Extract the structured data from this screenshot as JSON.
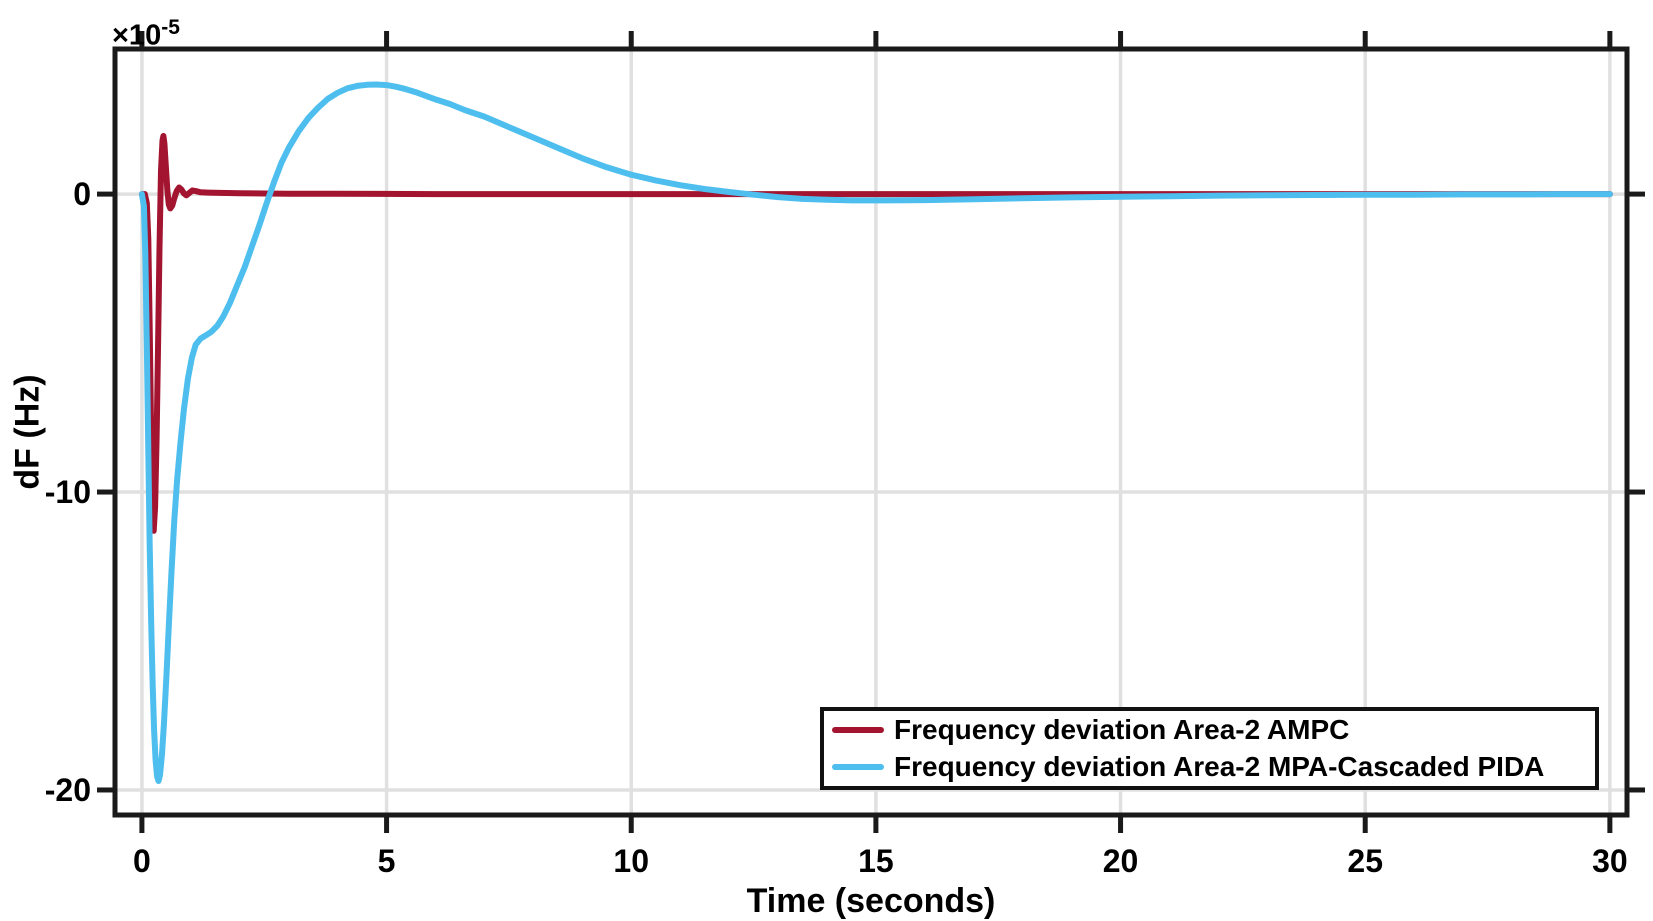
{
  "figure": {
    "background": "#ffffff",
    "axis_color": "#1a1a1a",
    "grid_color": "#e0e0e0",
    "tick_label_color": "#000000"
  },
  "chart_data": {
    "type": "line",
    "title": "",
    "xlabel": "Time (seconds)",
    "ylabel": "dF (Hz)",
    "y_offset_label": {
      "multiplier": "×10",
      "exponent": "-5"
    },
    "xlim": [
      -0.55,
      30.35
    ],
    "ylim": [
      -20.84,
      4.87
    ],
    "xticks": [
      0,
      5,
      10,
      15,
      20,
      25,
      30
    ],
    "yticks": [
      0,
      -10,
      -20
    ],
    "grid": true,
    "legend_position": "bottom-right",
    "series": [
      {
        "name": "Frequency deviation Area-2 AMPC",
        "color": "#a2142f",
        "points": [
          [
            0,
            0
          ],
          [
            0.06,
            0
          ],
          [
            0.1,
            -0.3
          ],
          [
            0.13,
            -1.5
          ],
          [
            0.16,
            -4.5
          ],
          [
            0.19,
            -8.2
          ],
          [
            0.22,
            -10.8
          ],
          [
            0.24,
            -11.3
          ],
          [
            0.27,
            -10.5
          ],
          [
            0.3,
            -8.2
          ],
          [
            0.33,
            -5
          ],
          [
            0.36,
            -1.8
          ],
          [
            0.39,
            0.8
          ],
          [
            0.42,
            1.8
          ],
          [
            0.44,
            1.95
          ],
          [
            0.46,
            1.7
          ],
          [
            0.49,
            0.9
          ],
          [
            0.52,
            0.1
          ],
          [
            0.55,
            -0.35
          ],
          [
            0.58,
            -0.48
          ],
          [
            0.62,
            -0.38
          ],
          [
            0.66,
            -0.15
          ],
          [
            0.71,
            0.1
          ],
          [
            0.76,
            0.22
          ],
          [
            0.81,
            0.15
          ],
          [
            0.86,
            0.02
          ],
          [
            0.91,
            -0.04
          ],
          [
            0.97,
            0.04
          ],
          [
            1.03,
            0.12
          ],
          [
            1.1,
            0.1
          ],
          [
            1.2,
            0.06
          ],
          [
            1.35,
            0.05
          ],
          [
            1.6,
            0.04
          ],
          [
            2,
            0.03
          ],
          [
            2.5,
            0.02
          ],
          [
            3,
            0.01
          ],
          [
            4,
            0.01
          ],
          [
            6,
            0
          ],
          [
            8,
            0
          ],
          [
            10,
            0
          ],
          [
            12,
            0
          ],
          [
            14,
            0
          ],
          [
            16,
            0
          ],
          [
            18,
            0
          ],
          [
            20,
            0
          ],
          [
            22,
            0
          ],
          [
            24,
            0
          ],
          [
            26,
            0
          ],
          [
            28,
            0
          ],
          [
            30,
            0
          ]
        ]
      },
      {
        "name": "Frequency deviation Area-2 MPA-Cascaded PIDA",
        "color": "#4dbeee",
        "points": [
          [
            0,
            0
          ],
          [
            0.04,
            -0.4
          ],
          [
            0.07,
            -2
          ],
          [
            0.1,
            -5
          ],
          [
            0.13,
            -8.6
          ],
          [
            0.16,
            -11.8
          ],
          [
            0.19,
            -14.4
          ],
          [
            0.22,
            -16.5
          ],
          [
            0.25,
            -18
          ],
          [
            0.28,
            -19
          ],
          [
            0.31,
            -19.55
          ],
          [
            0.34,
            -19.7
          ],
          [
            0.37,
            -19.5
          ],
          [
            0.41,
            -18.8
          ],
          [
            0.45,
            -17.8
          ],
          [
            0.5,
            -16.2
          ],
          [
            0.55,
            -14.5
          ],
          [
            0.6,
            -12.8
          ],
          [
            0.66,
            -11
          ],
          [
            0.72,
            -9.6
          ],
          [
            0.79,
            -8.3
          ],
          [
            0.86,
            -7.2
          ],
          [
            0.94,
            -6.2
          ],
          [
            1.02,
            -5.5
          ],
          [
            1.1,
            -5.05
          ],
          [
            1.2,
            -4.85
          ],
          [
            1.3,
            -4.75
          ],
          [
            1.42,
            -4.62
          ],
          [
            1.54,
            -4.42
          ],
          [
            1.66,
            -4.12
          ],
          [
            1.8,
            -3.65
          ],
          [
            1.95,
            -3.05
          ],
          [
            2.1,
            -2.45
          ],
          [
            2.25,
            -1.75
          ],
          [
            2.4,
            -1.05
          ],
          [
            2.55,
            -0.3
          ],
          [
            2.7,
            0.4
          ],
          [
            2.85,
            1.05
          ],
          [
            3,
            1.55
          ],
          [
            3.2,
            2.1
          ],
          [
            3.4,
            2.55
          ],
          [
            3.6,
            2.9
          ],
          [
            3.8,
            3.2
          ],
          [
            4,
            3.4
          ],
          [
            4.2,
            3.55
          ],
          [
            4.4,
            3.63
          ],
          [
            4.6,
            3.67
          ],
          [
            4.8,
            3.68
          ],
          [
            5,
            3.66
          ],
          [
            5.2,
            3.6
          ],
          [
            5.4,
            3.52
          ],
          [
            5.6,
            3.42
          ],
          [
            5.8,
            3.3
          ],
          [
            6,
            3.18
          ],
          [
            6.3,
            3.02
          ],
          [
            6.6,
            2.82
          ],
          [
            7,
            2.6
          ],
          [
            7.5,
            2.25
          ],
          [
            8,
            1.9
          ],
          [
            8.5,
            1.55
          ],
          [
            9,
            1.2
          ],
          [
            9.5,
            0.9
          ],
          [
            10,
            0.65
          ],
          [
            10.5,
            0.46
          ],
          [
            11,
            0.3
          ],
          [
            11.5,
            0.17
          ],
          [
            12,
            0.07
          ],
          [
            12.5,
            -0.02
          ],
          [
            13,
            -0.1
          ],
          [
            13.5,
            -0.16
          ],
          [
            14,
            -0.19
          ],
          [
            14.5,
            -0.21
          ],
          [
            15,
            -0.21
          ],
          [
            16,
            -0.2
          ],
          [
            17,
            -0.17
          ],
          [
            18,
            -0.14
          ],
          [
            19,
            -0.11
          ],
          [
            20,
            -0.09
          ],
          [
            21,
            -0.07
          ],
          [
            22,
            -0.05
          ],
          [
            23,
            -0.04
          ],
          [
            24,
            -0.03
          ],
          [
            25,
            -0.02
          ],
          [
            26,
            -0.02
          ],
          [
            27,
            -0.01
          ],
          [
            28,
            -0.01
          ],
          [
            29,
            0
          ],
          [
            30,
            0
          ]
        ]
      }
    ]
  }
}
